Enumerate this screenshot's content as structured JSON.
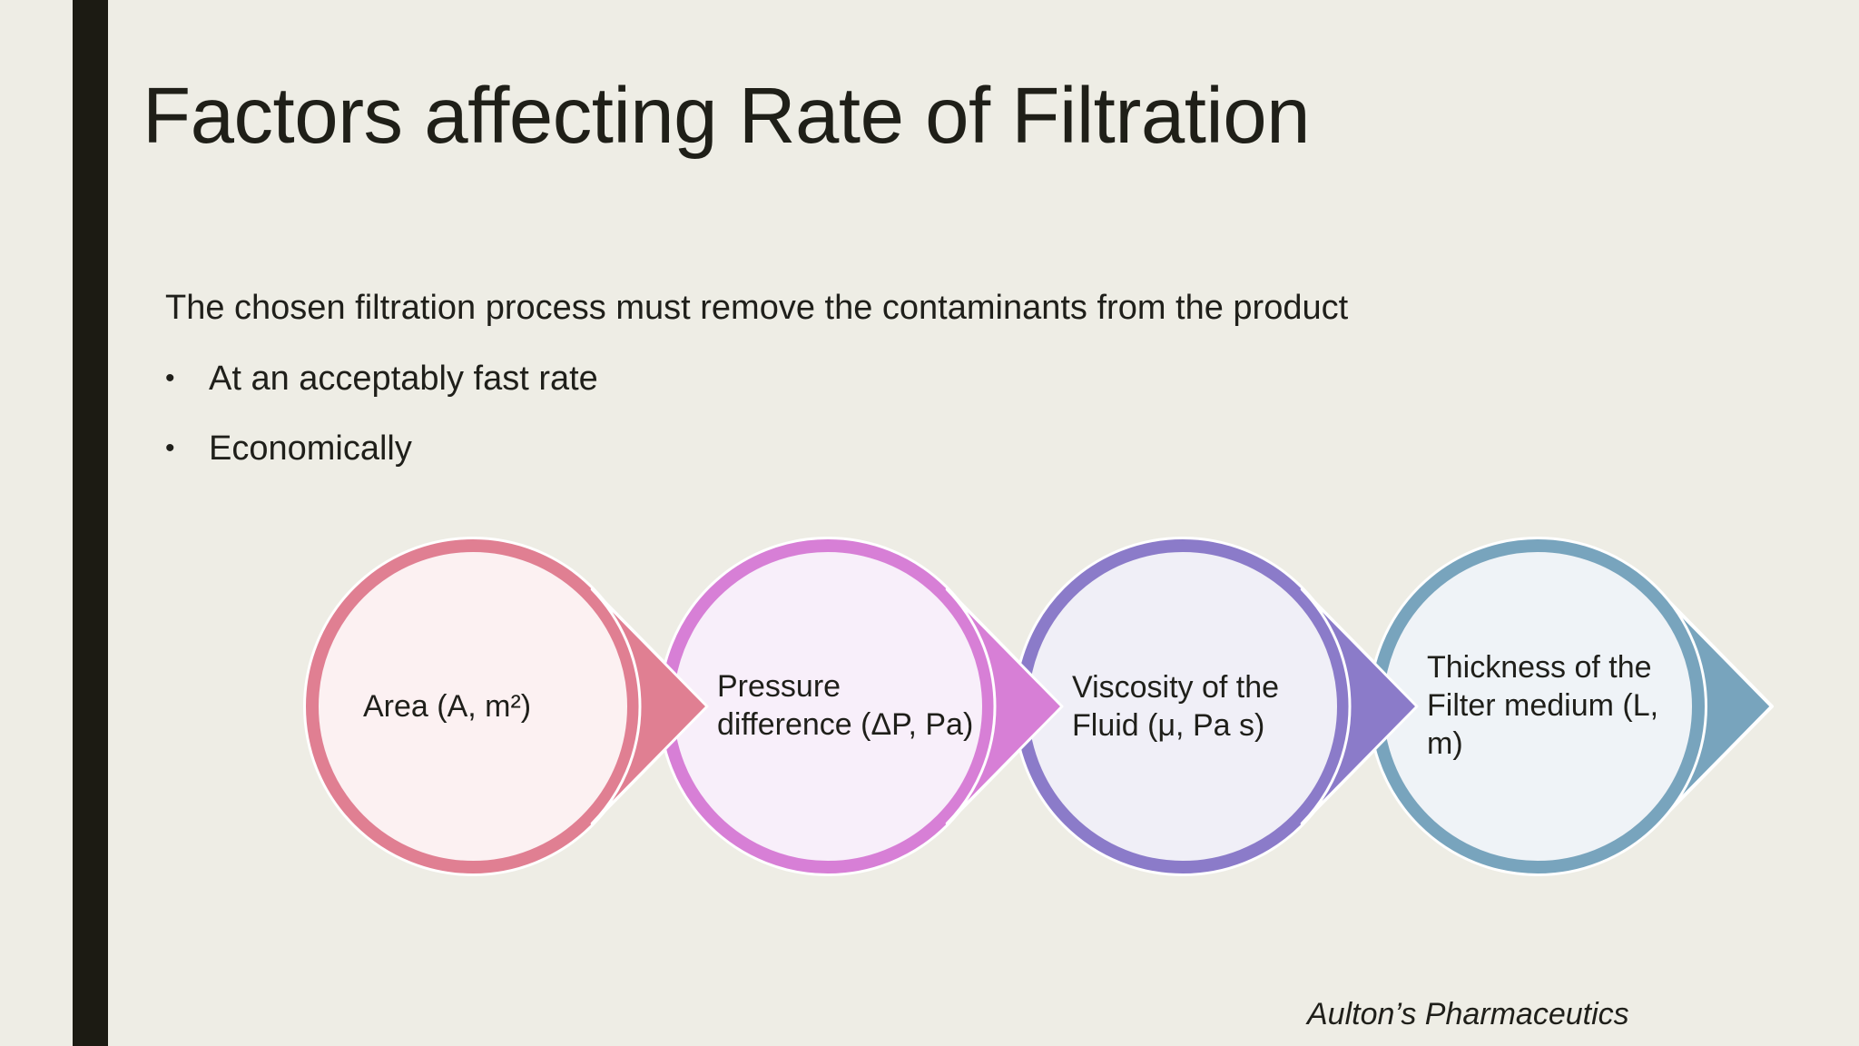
{
  "slide": {
    "title": "Factors affecting Rate of Filtration",
    "intro": "The chosen filtration process must remove the contaminants from the product",
    "bullets": [
      "At an acceptably fast rate",
      "Economically"
    ],
    "citation": "Aulton’s Pharmaceutics"
  },
  "diagram": {
    "steps": [
      {
        "label": "Area (A, m²)",
        "color": "#e07f92",
        "fill": "#fcf1f2"
      },
      {
        "label": "Pressure difference (ΔP, Pa)",
        "color": "#d77fd6",
        "fill": "#f8effa"
      },
      {
        "label": "Viscosity of the Fluid (μ, Pa s)",
        "color": "#8b7bc9",
        "fill": "#f0eff7"
      },
      {
        "label": "Thickness of the Filter medium (L, m)",
        "color": "#78a4bd",
        "fill": "#eff3f7"
      }
    ]
  }
}
